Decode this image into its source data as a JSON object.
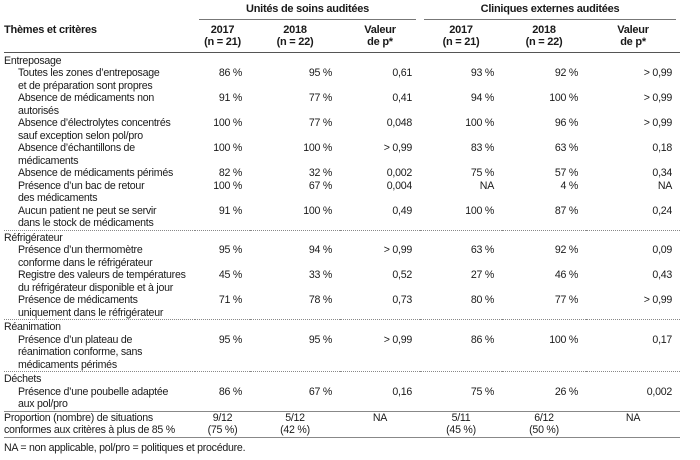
{
  "header": {
    "row_label": "Thèmes et critères",
    "groups": [
      "Unités de soins auditées",
      "Cliniques externes auditées"
    ],
    "columns": [
      {
        "l1": "2017",
        "l2": "(n = 21)"
      },
      {
        "l1": "2018",
        "l2": "(n = 22)"
      },
      {
        "l1": "Valeur",
        "l2": "de p*"
      },
      {
        "l1": "2017",
        "l2": "(n = 21)"
      },
      {
        "l1": "2018",
        "l2": "(n = 22)"
      },
      {
        "l1": "Valeur",
        "l2": "de p*"
      }
    ]
  },
  "sections": [
    {
      "title": "Entreposage",
      "rows": [
        {
          "label": [
            "Toutes les zones d’entreposage",
            "et de préparation sont propres"
          ],
          "values": [
            "86 %",
            "95 %",
            "0,61",
            "93 %",
            "92 %",
            "> 0,99"
          ]
        },
        {
          "label": [
            "Absence de médicaments non autorisés"
          ],
          "values": [
            "91 %",
            "77 %",
            "0,41",
            "94 %",
            "100 %",
            "> 0,99"
          ]
        },
        {
          "label": [
            "Absence d’électrolytes concentrés",
            "sauf exception selon pol/pro"
          ],
          "values": [
            "100 %",
            "77 %",
            "0,048",
            "100 %",
            "96 %",
            "> 0,99"
          ]
        },
        {
          "label": [
            "Absence d’échantillons de",
            "médicaments"
          ],
          "values": [
            "100 %",
            "100 %",
            "> 0,99",
            "83 %",
            "63 %",
            "0,18"
          ]
        },
        {
          "label": [
            "Absence de médicaments périmés"
          ],
          "values": [
            "82 %",
            "32 %",
            "0,002",
            "75 %",
            "57 %",
            "0,34"
          ]
        },
        {
          "label": [
            "Présence d’un bac de retour",
            "des médicaments"
          ],
          "values": [
            "100 %",
            "67 %",
            "0,004",
            "NA",
            "4 %",
            "NA"
          ]
        },
        {
          "label": [
            "Aucun patient ne peut se servir",
            "dans le stock de médicaments"
          ],
          "values": [
            "91 %",
            "100 %",
            "0,49",
            "100 %",
            "87 %",
            "0,24"
          ]
        }
      ]
    },
    {
      "title": "Réfrigérateur",
      "rows": [
        {
          "label": [
            "Présence d’un thermomètre",
            "conforme dans le réfrigérateur"
          ],
          "values": [
            "95 %",
            "94 %",
            "> 0,99",
            "63 %",
            "92 %",
            "0,09"
          ]
        },
        {
          "label": [
            "Registre des valeurs de températures",
            "du réfrigérateur disponible et à jour"
          ],
          "values": [
            "45 %",
            "33 %",
            "0,52",
            "27 %",
            "46 %",
            "0,43"
          ]
        },
        {
          "label": [
            "Présence de médicaments",
            "uniquement dans le réfrigérateur"
          ],
          "values": [
            "71 %",
            "78 %",
            "0,73",
            "80 %",
            "77 %",
            "> 0,99"
          ]
        }
      ]
    },
    {
      "title": "Réanimation",
      "rows": [
        {
          "label": [
            "Présence d’un plateau de",
            "réanimation conforme, sans",
            "médicaments périmés"
          ],
          "values": [
            "95 %",
            "95 %",
            "> 0,99",
            "86 %",
            "100 %",
            "0,17"
          ]
        }
      ]
    },
    {
      "title": "Déchets",
      "rows": [
        {
          "label": [
            "Présence d’une poubelle adaptée",
            "aux pol/pro"
          ],
          "values": [
            "86 %",
            "67 %",
            "0,16",
            "75 %",
            "26 %",
            "0,002"
          ]
        }
      ]
    }
  ],
  "summary": {
    "label": [
      "Proportion (nombre) de situations",
      "conformes aux critères à plus de 85 %"
    ],
    "values": [
      [
        "9/12",
        "(75 %)"
      ],
      [
        "5/12",
        "(42 %)"
      ],
      [
        "NA",
        ""
      ],
      [
        "5/11",
        "(45 %)"
      ],
      [
        "6/12",
        "(50 %)"
      ],
      [
        "NA",
        ""
      ]
    ]
  },
  "footnote": "NA = non applicable, pol/pro = politiques et procédure."
}
